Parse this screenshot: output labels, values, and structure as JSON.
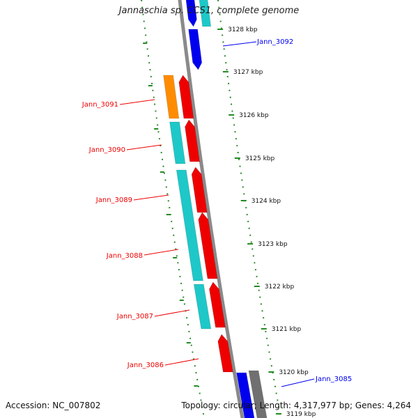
{
  "header": {
    "title": "Jannaschia sp. CCS1, complete genome"
  },
  "footer": {
    "accession": "Accession: NC_007802",
    "summary": "Topology: circular; Length: 4,317,977 bp; Genes: 4,264"
  },
  "colors": {
    "backbone": "#8a8a8a",
    "tick": "#228b22",
    "forward_gene": "#0000ee",
    "reverse_gene": "#ee0000",
    "cyan_feature": "#1ec8c8",
    "orange_feature": "#ff8c00",
    "gray_feature": "#707070"
  },
  "ticks": [
    "3128 kbp",
    "3127 kbp",
    "3126 kbp",
    "3125 kbp",
    "3124 kbp",
    "3123 kbp",
    "3122 kbp",
    "3121 kbp",
    "3120 kbp",
    "3119 kbp"
  ],
  "gene_labels": [
    {
      "text": "Jann_3092",
      "strand": "forward"
    },
    {
      "text": "Jann_3091",
      "strand": "reverse"
    },
    {
      "text": "Jann_3090",
      "strand": "reverse"
    },
    {
      "text": "Jann_3089",
      "strand": "reverse"
    },
    {
      "text": "Jann_3088",
      "strand": "reverse"
    },
    {
      "text": "Jann_3087",
      "strand": "reverse"
    },
    {
      "text": "Jann_3086",
      "strand": "reverse"
    },
    {
      "text": "Jann_3085",
      "strand": "forward"
    }
  ]
}
